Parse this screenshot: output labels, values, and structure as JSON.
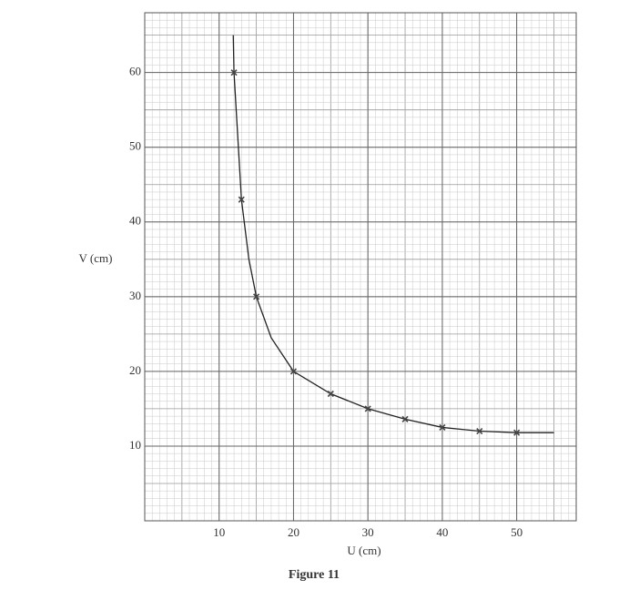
{
  "chart_data": {
    "type": "scatter",
    "caption": "Figure 11",
    "x_label": "U (cm)",
    "y_label": "V (cm)",
    "xlim": [
      0,
      58
    ],
    "ylim": [
      0,
      68
    ],
    "xticks": [
      10,
      20,
      30,
      40,
      50
    ],
    "yticks": [
      10,
      20,
      30,
      40,
      50,
      60
    ],
    "grid": true,
    "series": [
      {
        "color": "#444444",
        "x": [
          12,
          13,
          15,
          20,
          25,
          30,
          35,
          40,
          45,
          50
        ],
        "values": [
          60,
          43,
          30,
          20,
          17,
          15,
          13.6,
          12.5,
          12,
          11.8
        ]
      }
    ],
    "curve": {
      "color": "#222222",
      "x": [
        11.9,
        12,
        13,
        14,
        15,
        17,
        20,
        25,
        30,
        35,
        40,
        45,
        50,
        55
      ],
      "values": [
        65,
        60,
        43,
        35,
        30,
        24.5,
        20,
        17,
        15,
        13.6,
        12.5,
        12,
        11.8,
        11.8
      ]
    }
  }
}
